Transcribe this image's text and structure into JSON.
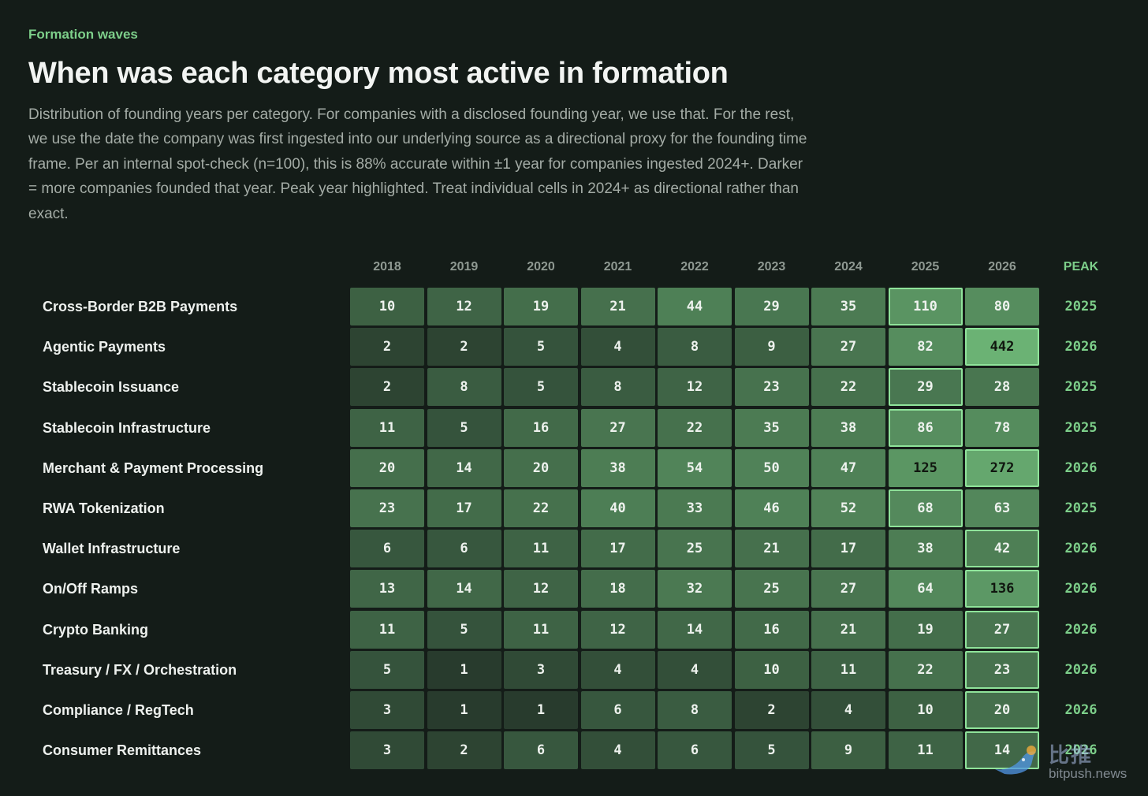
{
  "header": {
    "kicker": "Formation waves",
    "title": "When was each category most active in formation",
    "description": "Distribution of founding years per category. For companies with a disclosed founding year, we use that. For the rest, we use the date the company was first ingested into our underlying source as a directional proxy for the founding time frame. Per an internal spot-check (n=100), this is 88% accurate within ±1 year for companies ingested 2024+. Darker = more companies founded that year. Peak year highlighted. Treat individual cells in 2024+ as directional rather than exact."
  },
  "chart_data": {
    "type": "heatmap",
    "columns": [
      "2018",
      "2019",
      "2020",
      "2021",
      "2022",
      "2023",
      "2024",
      "2025",
      "2026"
    ],
    "peak_label": "PEAK",
    "rows": [
      {
        "label": "Cross-Border B2B Payments",
        "values": [
          10,
          12,
          19,
          21,
          44,
          29,
          35,
          110,
          80
        ],
        "peak": "2025"
      },
      {
        "label": "Agentic Payments",
        "values": [
          2,
          2,
          5,
          4,
          8,
          9,
          27,
          82,
          442
        ],
        "peak": "2026"
      },
      {
        "label": "Stablecoin Issuance",
        "values": [
          2,
          8,
          5,
          8,
          12,
          23,
          22,
          29,
          28
        ],
        "peak": "2025"
      },
      {
        "label": "Stablecoin Infrastructure",
        "values": [
          11,
          5,
          16,
          27,
          22,
          35,
          38,
          86,
          78
        ],
        "peak": "2025"
      },
      {
        "label": "Merchant & Payment Processing",
        "values": [
          20,
          14,
          20,
          38,
          54,
          50,
          47,
          125,
          272
        ],
        "peak": "2026"
      },
      {
        "label": "RWA Tokenization",
        "values": [
          23,
          17,
          22,
          40,
          33,
          46,
          52,
          68,
          63
        ],
        "peak": "2025"
      },
      {
        "label": "Wallet Infrastructure",
        "values": [
          6,
          6,
          11,
          17,
          25,
          21,
          17,
          38,
          42
        ],
        "peak": "2026"
      },
      {
        "label": "On/Off Ramps",
        "values": [
          13,
          14,
          12,
          18,
          32,
          25,
          27,
          64,
          136
        ],
        "peak": "2026"
      },
      {
        "label": "Crypto Banking",
        "values": [
          11,
          5,
          11,
          12,
          14,
          16,
          21,
          19,
          27
        ],
        "peak": "2026"
      },
      {
        "label": "Treasury / FX / Orchestration",
        "values": [
          5,
          1,
          3,
          4,
          4,
          10,
          11,
          22,
          23
        ],
        "peak": "2026"
      },
      {
        "label": "Compliance / RegTech",
        "values": [
          3,
          1,
          1,
          6,
          8,
          2,
          4,
          10,
          20
        ],
        "peak": "2026"
      },
      {
        "label": "Consumer Remittances",
        "values": [
          3,
          2,
          6,
          4,
          6,
          5,
          9,
          11,
          14
        ],
        "peak": "2026"
      }
    ],
    "colors": {
      "cell_dark": "#1f2c24",
      "cell_bright": "#6bb274",
      "highlight_border": "#8fe39a",
      "peak_text": "#7dcf8a"
    }
  },
  "watermark": {
    "brand": "比推",
    "site": "bitpush.news"
  }
}
